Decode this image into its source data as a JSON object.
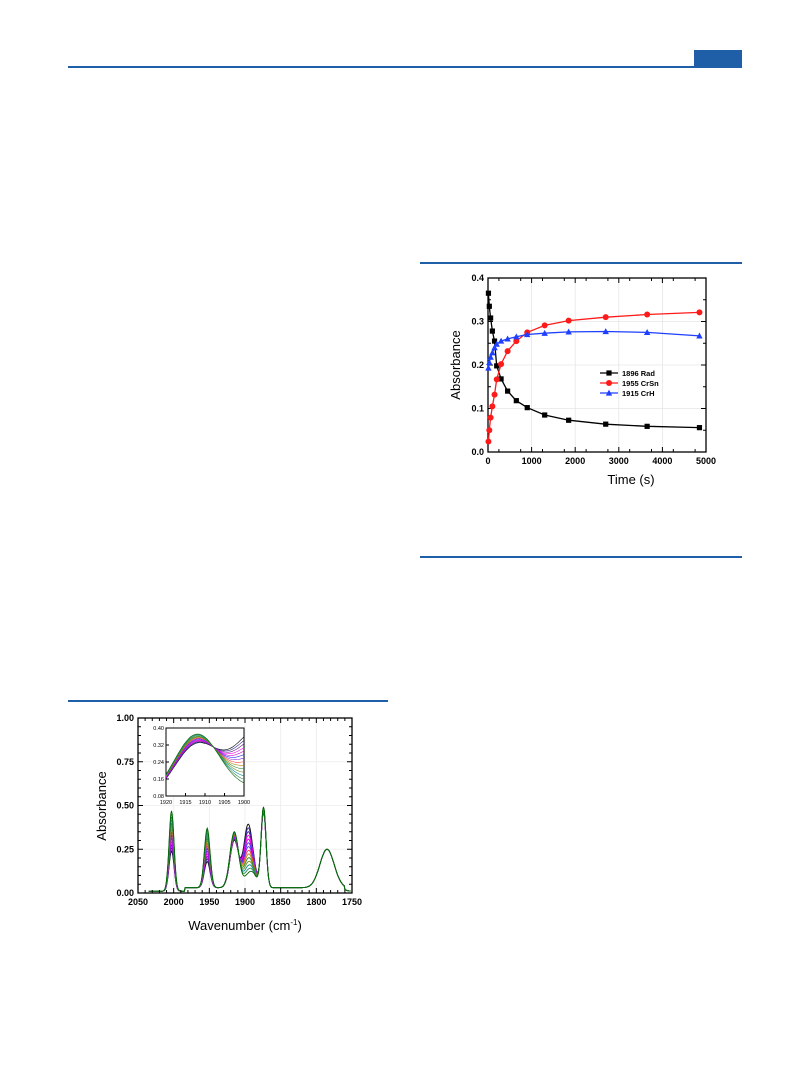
{
  "colors": {
    "accent": "#1f5fa8",
    "black_series": "#000000",
    "red_series": "#ff1a1a",
    "blue_series": "#1f3fff"
  },
  "figure_ir": {
    "chart_data": {
      "type": "line",
      "xlabel": "Wavenumber (cm",
      "xlabel_sup": "-1",
      "xlabel_close": ")",
      "ylabel": "Absorbance",
      "xlim": [
        2050,
        1750
      ],
      "ylim": [
        0,
        1
      ],
      "x_ticks": [
        "2050",
        "2000",
        "1950",
        "1900",
        "1850",
        "1800",
        "1750"
      ],
      "y_ticks": [
        "0.00",
        "0.25",
        "0.50",
        "0.75",
        "1.00"
      ],
      "n_traces": 14,
      "peaks": [
        {
          "x": 2003,
          "first": 0.23,
          "last": 0.46,
          "width": 3.5
        },
        {
          "x": 1953,
          "first": 0.15,
          "last": 0.34,
          "width": 4
        },
        {
          "x": 1915,
          "first": 0.27,
          "last": 0.32,
          "width": 6
        },
        {
          "x": 1896,
          "first": 0.34,
          "last": 0.06,
          "width": 6
        },
        {
          "x": 1874,
          "first": 0.43,
          "last": 0.46,
          "width": 3.5
        },
        {
          "x": 1785,
          "first": 0.22,
          "last": 0.22,
          "width": 10
        }
      ],
      "inset": {
        "xlim": [
          1920,
          1900
        ],
        "ylim": [
          0.08,
          0.4
        ],
        "x_ticks": [
          "1920",
          "1915",
          "1910",
          "1905",
          "1900"
        ],
        "y_ticks": [
          "0.08",
          "0.16",
          "0.24",
          "0.32",
          "0.40"
        ]
      }
    }
  },
  "figure_kinetics": {
    "chart_data": {
      "type": "line",
      "xlabel": "Time (s)",
      "ylabel": "Absorbance",
      "xlim": [
        0,
        5000
      ],
      "ylim": [
        0,
        0.4
      ],
      "x_ticks": [
        "0",
        "1000",
        "2000",
        "3000",
        "4000",
        "5000"
      ],
      "y_ticks": [
        "0.0",
        "0.1",
        "0.2",
        "0.3",
        "0.4"
      ],
      "legend_position": "center-right",
      "x": [
        10,
        30,
        60,
        100,
        150,
        200,
        300,
        450,
        650,
        900,
        1300,
        1850,
        2700,
        3650,
        4850
      ],
      "series": [
        {
          "name": "1896 Rad",
          "marker": "square",
          "values": [
            0.365,
            0.335,
            0.308,
            0.278,
            0.255,
            0.198,
            0.168,
            0.14,
            0.118,
            0.102,
            0.085,
            0.073,
            0.064,
            0.059,
            0.056
          ]
        },
        {
          "name": "1955 CrSn",
          "marker": "circle",
          "values": [
            0.024,
            0.05,
            0.079,
            0.105,
            0.132,
            0.167,
            0.202,
            0.232,
            0.255,
            0.275,
            0.291,
            0.302,
            0.31,
            0.316,
            0.321
          ]
        },
        {
          "name": "1915 CrH",
          "marker": "triangle",
          "values": [
            0.193,
            0.206,
            0.218,
            0.228,
            0.24,
            0.248,
            0.255,
            0.26,
            0.265,
            0.27,
            0.273,
            0.276,
            0.277,
            0.275,
            0.267
          ]
        }
      ]
    }
  }
}
